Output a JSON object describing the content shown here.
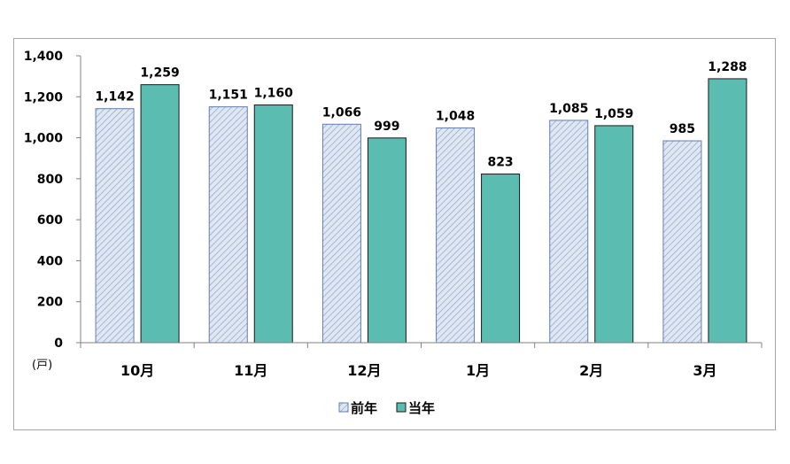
{
  "chart_data": {
    "type": "bar",
    "categories": [
      "10月",
      "11月",
      "12月",
      "1月",
      "2月",
      "3月"
    ],
    "series": [
      {
        "name": "前年",
        "values": [
          1142,
          1151,
          1066,
          1048,
          1085,
          985
        ],
        "labels": [
          "1,142",
          "1,151",
          "1,066",
          "1,048",
          "1,085",
          "985"
        ],
        "color": "#dce6f2",
        "pattern": "diagonal-hatch"
      },
      {
        "name": "当年",
        "values": [
          1259,
          1160,
          999,
          823,
          1059,
          1288
        ],
        "labels": [
          "1,259",
          "1,160",
          "999",
          "823",
          "1,059",
          "1,288"
        ],
        "color": "#5bbcb2"
      }
    ],
    "ylim": [
      0,
      1400
    ],
    "yticks": [
      0,
      200,
      400,
      600,
      800,
      1000,
      1200,
      1400
    ],
    "ytick_labels": [
      "0",
      "200",
      "400",
      "600",
      "800",
      "1,000",
      "1,200",
      "1,400"
    ],
    "yunit": "(戸)",
    "grid": false,
    "legend": "bottom-center"
  }
}
